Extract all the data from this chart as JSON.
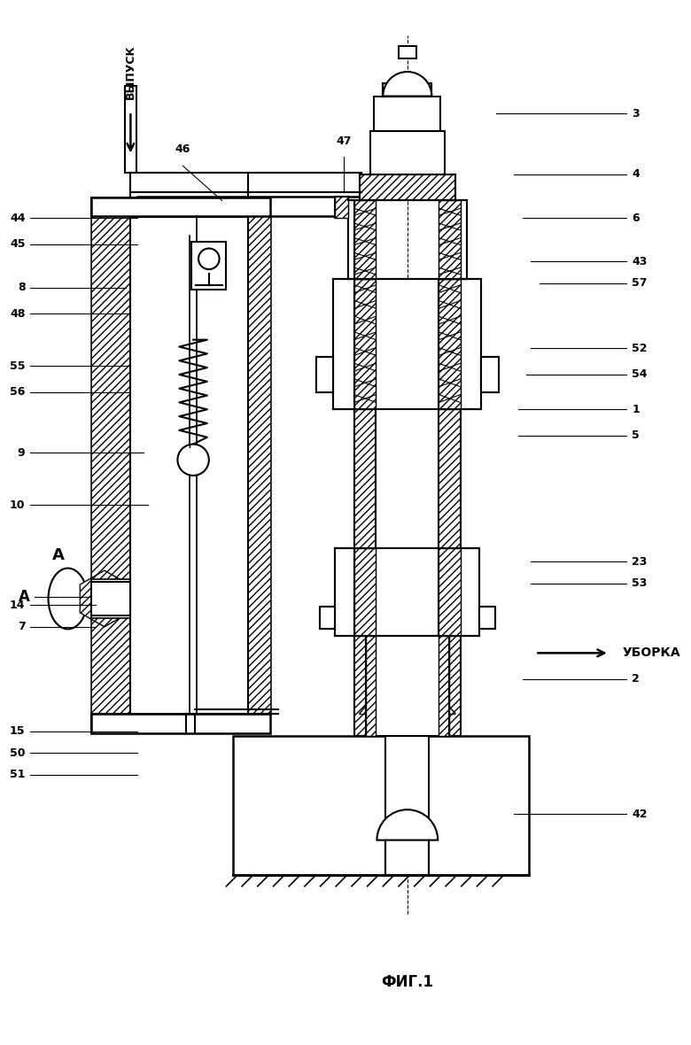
{
  "title": "ФИГ.1",
  "bg_color": "#ffffff",
  "line_color": "#000000",
  "labels": {
    "vypusk": "ВЫПУСК",
    "uborka": "УБОРКА",
    "A": "А"
  },
  "figsize": [
    7.8,
    11.8
  ],
  "dpi": 100,
  "left_labels": [
    [
      "44",
      158,
      940,
      35,
      940
    ],
    [
      "45",
      158,
      910,
      35,
      910
    ],
    [
      "8",
      145,
      860,
      35,
      860
    ],
    [
      "48",
      148,
      830,
      35,
      830
    ],
    [
      "55",
      148,
      770,
      35,
      770
    ],
    [
      "56",
      148,
      740,
      35,
      740
    ],
    [
      "9",
      165,
      670,
      35,
      670
    ],
    [
      "10",
      170,
      610,
      35,
      610
    ],
    [
      "14",
      110,
      495,
      35,
      495
    ],
    [
      "7",
      110,
      470,
      35,
      470
    ],
    [
      "15",
      158,
      350,
      35,
      350
    ],
    [
      "50",
      158,
      325,
      35,
      325
    ],
    [
      "51",
      158,
      300,
      35,
      300
    ]
  ],
  "right_labels": [
    [
      "3",
      570,
      1060,
      720,
      1060
    ],
    [
      "4",
      590,
      990,
      720,
      990
    ],
    [
      "6",
      600,
      940,
      720,
      940
    ],
    [
      "43",
      610,
      890,
      720,
      890
    ],
    [
      "57",
      620,
      865,
      720,
      865
    ],
    [
      "52",
      610,
      790,
      720,
      790
    ],
    [
      "54",
      605,
      760,
      720,
      760
    ],
    [
      "1",
      595,
      720,
      720,
      720
    ],
    [
      "5",
      595,
      690,
      720,
      690
    ],
    [
      "23",
      610,
      545,
      720,
      545
    ],
    [
      "53",
      610,
      520,
      720,
      520
    ],
    [
      "2",
      600,
      410,
      720,
      410
    ],
    [
      "42",
      590,
      255,
      720,
      255
    ]
  ],
  "top_labels": [
    [
      "46",
      255,
      960,
      210,
      1000
    ],
    [
      "47",
      395,
      970,
      395,
      1010
    ]
  ],
  "MCX": 468
}
